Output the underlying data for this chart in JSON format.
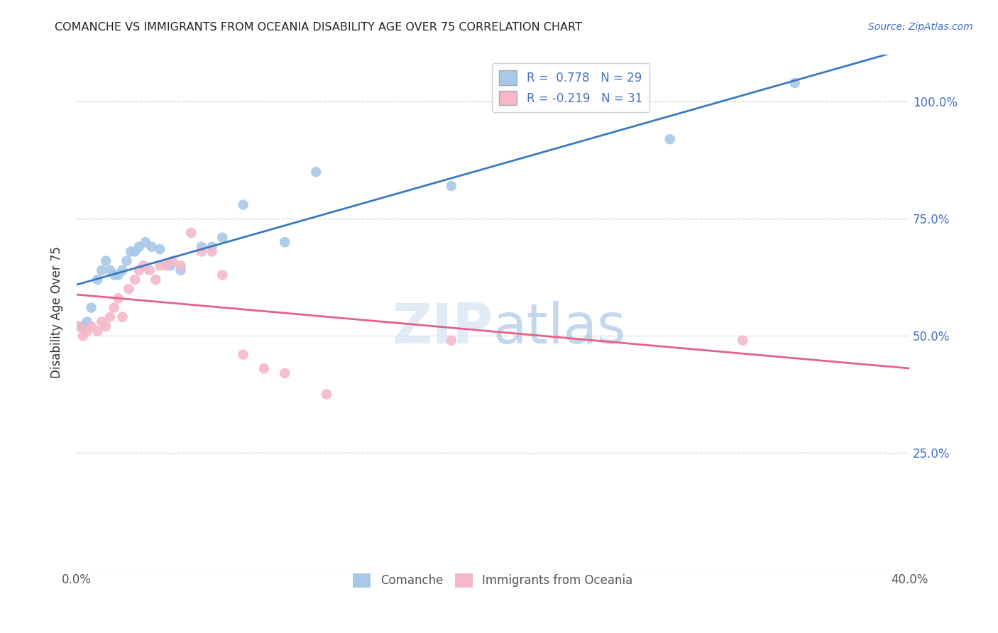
{
  "title": "COMANCHE VS IMMIGRANTS FROM OCEANIA DISABILITY AGE OVER 75 CORRELATION CHART",
  "source": "Source: ZipAtlas.com",
  "ylabel_label": "Disability Age Over 75",
  "xmin": 0.0,
  "xmax": 0.4,
  "ymin": 0.0,
  "ymax": 1.1,
  "x_ticks": [
    0.0,
    0.1,
    0.2,
    0.3,
    0.4
  ],
  "x_tick_labels": [
    "0.0%",
    "",
    "",
    "",
    "40.0%"
  ],
  "y_tick_labels_right": [
    "",
    "25.0%",
    "50.0%",
    "75.0%",
    "100.0%"
  ],
  "y_ticks_right": [
    0.0,
    0.25,
    0.5,
    0.75,
    1.0
  ],
  "comanche_r": 0.778,
  "comanche_n": 29,
  "oceania_r": -0.219,
  "oceania_n": 31,
  "comanche_color": "#a8c8e8",
  "oceania_color": "#f4b8c8",
  "comanche_line_color": "#3a7abf",
  "oceania_line_color": "#e8608a",
  "watermark_zip": "ZIP",
  "watermark_atlas": "atlas",
  "comanche_x": [
    0.001,
    0.003,
    0.005,
    0.007,
    0.01,
    0.012,
    0.014,
    0.016,
    0.018,
    0.02,
    0.022,
    0.024,
    0.026,
    0.028,
    0.03,
    0.033,
    0.036,
    0.04,
    0.045,
    0.05,
    0.06,
    0.065,
    0.07,
    0.08,
    0.1,
    0.115,
    0.18,
    0.285,
    0.345
  ],
  "comanche_y": [
    0.52,
    0.52,
    0.53,
    0.56,
    0.62,
    0.64,
    0.66,
    0.64,
    0.63,
    0.63,
    0.64,
    0.66,
    0.68,
    0.68,
    0.69,
    0.7,
    0.69,
    0.685,
    0.65,
    0.64,
    0.69,
    0.69,
    0.71,
    0.78,
    0.7,
    0.85,
    0.82,
    0.92,
    1.04
  ],
  "oceania_x": [
    0.001,
    0.003,
    0.005,
    0.007,
    0.01,
    0.012,
    0.014,
    0.016,
    0.018,
    0.02,
    0.022,
    0.025,
    0.028,
    0.03,
    0.032,
    0.035,
    0.038,
    0.04,
    0.043,
    0.046,
    0.05,
    0.055,
    0.06,
    0.065,
    0.07,
    0.08,
    0.09,
    0.1,
    0.12,
    0.18,
    0.32
  ],
  "oceania_y": [
    0.52,
    0.5,
    0.51,
    0.52,
    0.51,
    0.53,
    0.52,
    0.54,
    0.56,
    0.58,
    0.54,
    0.6,
    0.62,
    0.64,
    0.65,
    0.64,
    0.62,
    0.65,
    0.65,
    0.66,
    0.65,
    0.72,
    0.68,
    0.68,
    0.63,
    0.46,
    0.43,
    0.42,
    0.375,
    0.49,
    0.49
  ]
}
